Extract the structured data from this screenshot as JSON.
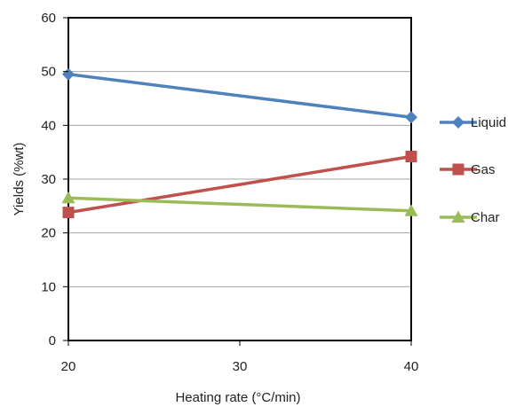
{
  "chart_data": {
    "type": "line",
    "x": [
      20,
      40
    ],
    "xticks": [
      20,
      30,
      40
    ],
    "xlabel": "Heating rate (°C/min)",
    "ylabel": "Yields (%wt)",
    "ylim": [
      0,
      60
    ],
    "xlim": [
      20,
      40
    ],
    "yticks": [
      0,
      10,
      20,
      30,
      40,
      50,
      60
    ],
    "grid": "horizontal",
    "legend_position": "right",
    "series": [
      {
        "name": "Liquid",
        "values": [
          49.5,
          41.5
        ],
        "color": "#4f81bd",
        "marker": "diamond"
      },
      {
        "name": "Gas",
        "values": [
          23.8,
          34.2
        ],
        "color": "#c0504d",
        "marker": "square"
      },
      {
        "name": "Char",
        "values": [
          26.5,
          24.1
        ],
        "color": "#9bbb59",
        "marker": "triangle"
      }
    ]
  }
}
